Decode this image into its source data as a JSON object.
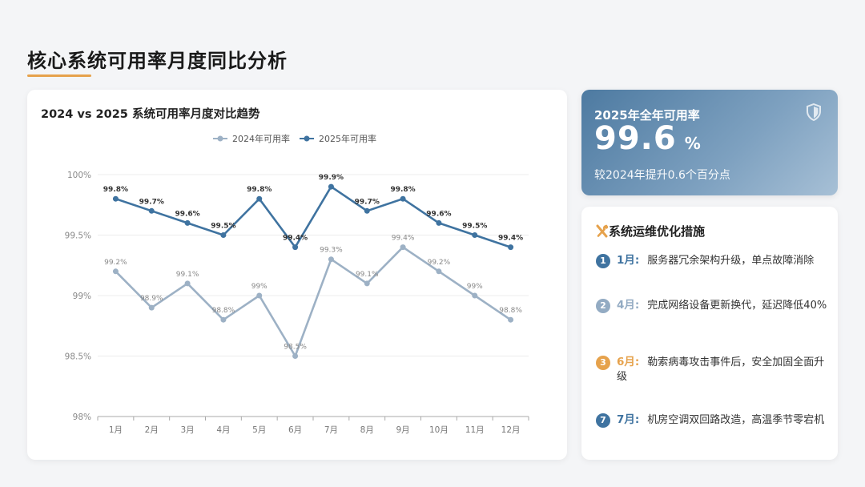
{
  "page": {
    "title": "核心系统可用率月度同比分析"
  },
  "kpi": {
    "label": "2025年全年可用率",
    "value": "99.6",
    "unit": "%",
    "note": "较2024年提升0.6个百分点",
    "icon": "shield-icon"
  },
  "measures": {
    "icon": "tools-icon",
    "title": "系统运维优化措施",
    "items": [
      {
        "num": "1",
        "month": "1月:",
        "text": "服务器冗余架构升级，单点故障消除",
        "color": "#3f73a0"
      },
      {
        "num": "2",
        "month": "4月:",
        "text": "完成网络设备更新换代，延迟降低40%",
        "color": "#93abc3"
      },
      {
        "num": "3",
        "month": "6月:",
        "text": "勒索病毒攻击事件后，安全加固全面升级",
        "color": "#e6a24c"
      },
      {
        "num": "7",
        "month": "7月:",
        "text": "机房空调双回路改造，高温季节零宕机",
        "color": "#3f73a0"
      }
    ]
  },
  "chart_data": {
    "type": "line",
    "title": "2024 vs 2025 系统可用率月度对比趋势",
    "categories": [
      "1月",
      "2月",
      "3月",
      "4月",
      "5月",
      "6月",
      "7月",
      "8月",
      "9月",
      "10月",
      "11月",
      "12月"
    ],
    "series": [
      {
        "name": "2024年可用率",
        "color": "#9db1c5",
        "values": [
          99.2,
          98.9,
          99.1,
          98.8,
          99.0,
          98.5,
          99.3,
          99.1,
          99.4,
          99.2,
          99.0,
          98.8
        ],
        "labels": [
          "99.2%",
          "98.9%",
          "99.1%",
          "98.8%",
          "99%",
          "98.5%",
          "99.3%",
          "99.1%",
          "99.4%",
          "99.2%",
          "99%",
          "98.8%"
        ]
      },
      {
        "name": "2025年可用率",
        "color": "#3f73a0",
        "values": [
          99.8,
          99.7,
          99.6,
          99.5,
          99.8,
          99.4,
          99.9,
          99.7,
          99.8,
          99.6,
          99.5,
          99.4
        ],
        "labels": [
          "99.8%",
          "99.7%",
          "99.6%",
          "99.5%",
          "99.8%",
          "99.4%",
          "99.9%",
          "99.7%",
          "99.8%",
          "99.6%",
          "99.5%",
          "99.4%"
        ]
      }
    ],
    "ylim": [
      98,
      100
    ],
    "yticks": [
      98,
      98.5,
      99,
      99.5,
      100
    ],
    "ytick_labels": [
      "98%",
      "98.5%",
      "99%",
      "99.5%",
      "100%"
    ],
    "legend": "top-center",
    "grid": true
  }
}
